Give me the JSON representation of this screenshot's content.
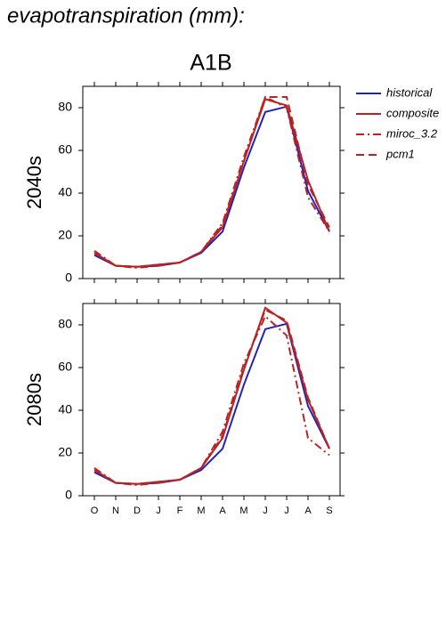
{
  "header": {
    "title": "evapotranspiration (mm):",
    "subtitle": "A1B"
  },
  "chart_data": [
    {
      "type": "line",
      "ylabel": "2040s",
      "ylim": [
        0,
        90
      ],
      "yticks": [
        0,
        20,
        40,
        60,
        80
      ],
      "series": [
        {
          "name": "historical",
          "color": "#2222bb",
          "dash": "solid",
          "values": [
            11,
            6,
            5.5,
            6,
            7.5,
            12,
            22,
            52,
            78,
            80.5,
            41,
            22
          ]
        },
        {
          "name": "composite",
          "color": "#bb2222",
          "dash": "solid",
          "values": [
            12,
            6,
            5.5,
            6.5,
            7.5,
            12.5,
            24,
            55,
            84,
            81,
            46,
            22
          ]
        },
        {
          "name": "miroc_3.2",
          "color": "#bb2222",
          "dash": "dashdot",
          "values": [
            13,
            6,
            5,
            6,
            7.5,
            12.5,
            26,
            57,
            85,
            80,
            38,
            22
          ]
        },
        {
          "name": "pcm1",
          "color": "#bb2222",
          "dash": "dashed",
          "values": [
            12,
            6,
            5.5,
            6.5,
            7.5,
            12.5,
            25,
            55,
            85,
            85,
            44,
            24
          ]
        }
      ]
    },
    {
      "type": "line",
      "ylabel": "2080s",
      "ylim": [
        0,
        90
      ],
      "yticks": [
        0,
        20,
        40,
        60,
        80
      ],
      "categories": [
        "O",
        "N",
        "D",
        "J",
        "F",
        "M",
        "A",
        "M",
        "J",
        "J",
        "A",
        "S"
      ],
      "series": [
        {
          "color": "#2222bb",
          "dash": "solid",
          "values": [
            11,
            6,
            5.5,
            6,
            7.5,
            12,
            22,
            52,
            78,
            80.5,
            42,
            22
          ]
        },
        {
          "color": "#bb2222",
          "dash": "solid",
          "values": [
            12,
            6,
            5.5,
            6.5,
            7.5,
            13,
            27,
            59,
            88,
            81,
            45,
            22
          ]
        },
        {
          "color": "#bb2222",
          "dash": "dashdot",
          "values": [
            13,
            6,
            5,
            6,
            7.5,
            13,
            30,
            62,
            84,
            75,
            27,
            19
          ]
        },
        {
          "color": "#bb2222",
          "dash": "dashed",
          "values": [
            12,
            6,
            5.5,
            6.5,
            7.5,
            13,
            28,
            60,
            87,
            82,
            46,
            22
          ]
        }
      ]
    }
  ]
}
